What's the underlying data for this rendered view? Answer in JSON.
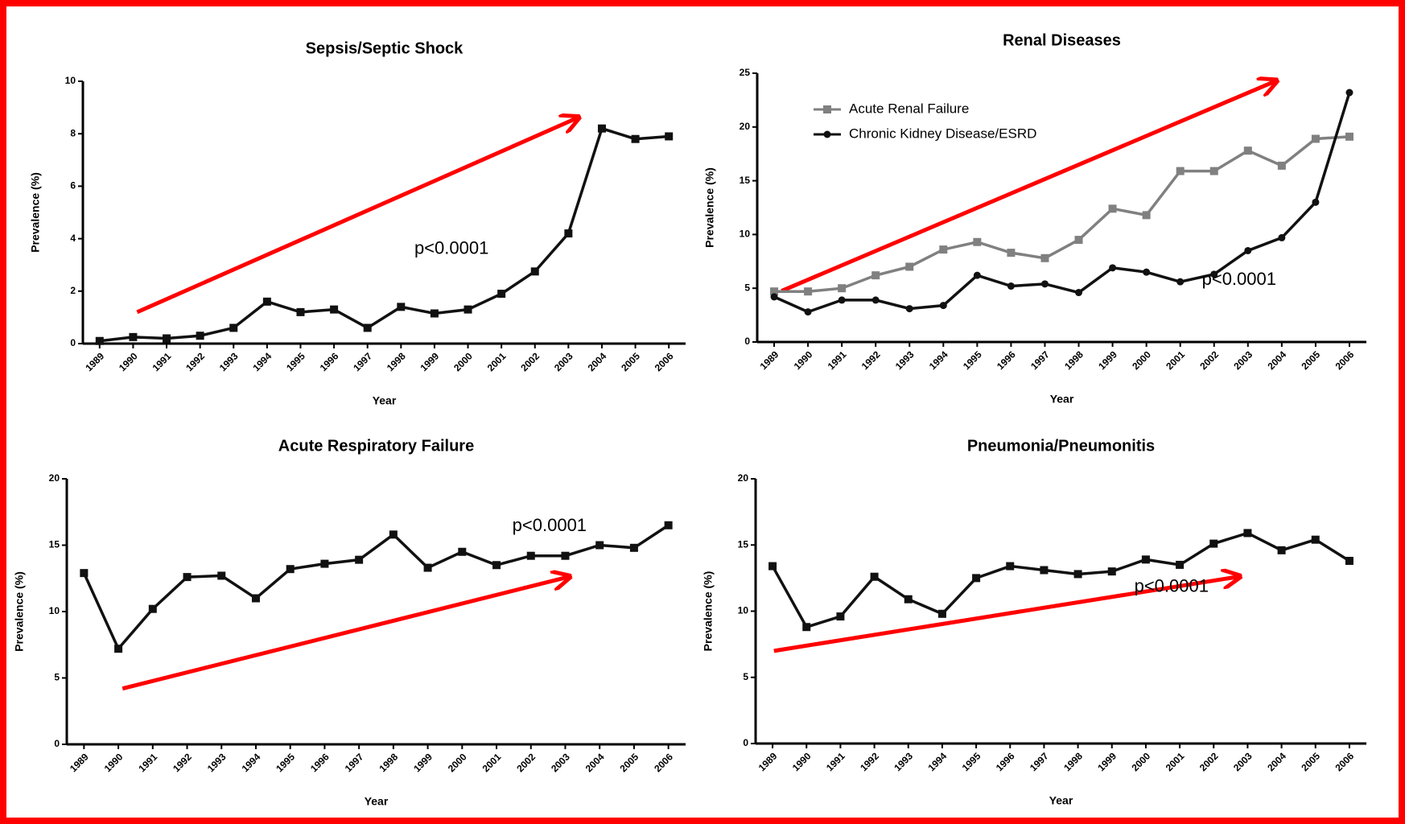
{
  "chart_data": [
    {
      "type": "line",
      "title": "Sepsis/Septic Shock",
      "xlabel": "Year",
      "ylabel": "Prevalence (%)",
      "categories": [
        "1989",
        "1990",
        "1991",
        "1992",
        "1993",
        "1994",
        "1995",
        "1996",
        "1997",
        "1998",
        "1999",
        "2000",
        "2001",
        "2002",
        "2003",
        "2004",
        "2005",
        "2006"
      ],
      "series": [
        {
          "name": null,
          "color": "#111111",
          "marker": "square",
          "values": [
            0.1,
            0.25,
            0.2,
            0.3,
            0.6,
            1.6,
            1.2,
            1.3,
            0.6,
            1.4,
            1.15,
            1.3,
            1.9,
            2.75,
            4.2,
            8.2,
            7.8,
            7.9
          ]
        }
      ],
      "ylim": [
        0,
        10
      ],
      "yticks": [
        0,
        2,
        4,
        6,
        8,
        10
      ],
      "annotation": "p<0.0001"
    },
    {
      "type": "line",
      "title": "Renal Diseases",
      "xlabel": "Year",
      "ylabel": "Prevalence (%)",
      "categories": [
        "1989",
        "1990",
        "1991",
        "1992",
        "1993",
        "1994",
        "1995",
        "1996",
        "1997",
        "1998",
        "1999",
        "2000",
        "2001",
        "2002",
        "2003",
        "2004",
        "2005",
        "2006"
      ],
      "series": [
        {
          "name": "Acute Renal Failure",
          "color": "#808080",
          "marker": "square",
          "values": [
            4.7,
            4.7,
            5.0,
            6.2,
            7.0,
            8.6,
            9.3,
            8.3,
            7.8,
            9.5,
            12.4,
            11.8,
            15.9,
            15.9,
            17.8,
            16.4,
            18.9,
            19.1
          ]
        },
        {
          "name": "Chronic Kidney Disease/ESRD",
          "color": "#111111",
          "marker": "circle",
          "values": [
            4.2,
            2.8,
            3.9,
            3.9,
            3.1,
            3.4,
            6.2,
            5.2,
            5.4,
            4.6,
            6.9,
            6.5,
            5.6,
            6.3,
            8.5,
            9.7,
            13.0,
            23.2
          ]
        }
      ],
      "ylim": [
        0,
        25
      ],
      "yticks": [
        0,
        5,
        10,
        15,
        20,
        25
      ],
      "legend": "upper left",
      "annotation": "p<0.0001"
    },
    {
      "type": "line",
      "title": "Acute Respiratory Failure",
      "xlabel": "Year",
      "ylabel": "Prevalence (%)",
      "categories": [
        "1989",
        "1990",
        "1991",
        "1992",
        "1993",
        "1994",
        "1995",
        "1996",
        "1997",
        "1998",
        "1999",
        "2000",
        "2001",
        "2002",
        "2003",
        "2004",
        "2005",
        "2006"
      ],
      "series": [
        {
          "name": null,
          "color": "#111111",
          "marker": "square",
          "values": [
            12.9,
            7.2,
            10.2,
            12.6,
            12.7,
            11.0,
            13.2,
            13.6,
            13.9,
            15.8,
            13.3,
            14.5,
            13.5,
            14.2,
            14.2,
            15.0,
            14.8,
            16.5
          ]
        }
      ],
      "ylim": [
        0,
        20
      ],
      "yticks": [
        0,
        5,
        10,
        15,
        20
      ],
      "annotation": "p<0.0001"
    },
    {
      "type": "line",
      "title": "Pneumonia/Pneumonitis",
      "xlabel": "Year",
      "ylabel": "Prevalence (%)",
      "categories": [
        "1989",
        "1990",
        "1991",
        "1992",
        "1993",
        "1994",
        "1995",
        "1996",
        "1997",
        "1998",
        "1999",
        "2000",
        "2001",
        "2002",
        "2003",
        "2004",
        "2005",
        "2006"
      ],
      "series": [
        {
          "name": null,
          "color": "#111111",
          "marker": "square",
          "values": [
            13.4,
            8.8,
            9.6,
            12.6,
            10.9,
            9.8,
            12.5,
            13.4,
            13.1,
            12.8,
            13.0,
            13.9,
            13.5,
            15.1,
            15.9,
            14.6,
            15.4,
            13.8
          ]
        }
      ],
      "ylim": [
        0,
        20
      ],
      "yticks": [
        0,
        5,
        10,
        15,
        20
      ],
      "annotation": "p<0.0001"
    }
  ]
}
